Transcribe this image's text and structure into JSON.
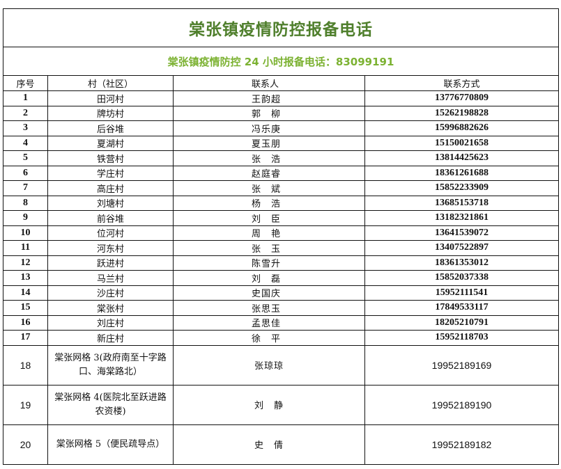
{
  "colors": {
    "title": "#4f7f2c",
    "subtitle": "#7cb232",
    "border": "#111111"
  },
  "title": "棠张镇疫情防控报备电话",
  "subtitle": "棠张镇疫情防控 24 小时报备电话：83099191",
  "headers": [
    "序号",
    "村（社区）",
    "联系人",
    "联系方式"
  ],
  "rows": [
    {
      "no": "1",
      "village": "田河村",
      "contact": "王韵超",
      "phone": "13776770809"
    },
    {
      "no": "2",
      "village": "牌坊村",
      "contact": "郭　柳",
      "phone": "15262198828"
    },
    {
      "no": "3",
      "village": "后谷堆",
      "contact": "冯乐庚",
      "phone": "15996882626"
    },
    {
      "no": "4",
      "village": "夏湖村",
      "contact": "夏玉朋",
      "phone": "15150021658"
    },
    {
      "no": "5",
      "village": "铁营村",
      "contact": "张　浩",
      "phone": "13814425623"
    },
    {
      "no": "6",
      "village": "学庄村",
      "contact": "赵庭睿",
      "phone": "18361261688"
    },
    {
      "no": "7",
      "village": "高庄村",
      "contact": "张　斌",
      "phone": "15852233909"
    },
    {
      "no": "8",
      "village": "刘塘村",
      "contact": "杨　浩",
      "phone": "13685153718"
    },
    {
      "no": "9",
      "village": "前谷堆",
      "contact": "刘　臣",
      "phone": "13182321861"
    },
    {
      "no": "10",
      "village": "位河村",
      "contact": "周　艳",
      "phone": "13641539072"
    },
    {
      "no": "11",
      "village": "河东村",
      "contact": "张　玉",
      "phone": "13407522897"
    },
    {
      "no": "12",
      "village": "跃进村",
      "contact": "陈雪升",
      "phone": "18361353012"
    },
    {
      "no": "13",
      "village": "马兰村",
      "contact": "刘　磊",
      "phone": "15852037338"
    },
    {
      "no": "14",
      "village": "沙庄村",
      "contact": "史国庆",
      "phone": "15952111541"
    },
    {
      "no": "15",
      "village": "棠张村",
      "contact": "张思玉",
      "phone": "17849533117"
    },
    {
      "no": "16",
      "village": "刘庄村",
      "contact": "孟思佳",
      "phone": "18205210791"
    },
    {
      "no": "17",
      "village": "新庄村",
      "contact": "徐　平",
      "phone": "15952118703"
    },
    {
      "no": "18",
      "village": "棠张网格 3(政府南至十字路口、海棠路北）",
      "contact": "张琼琼",
      "phone": "19952189169"
    },
    {
      "no": "19",
      "village": "棠张网格 4(医院北至跃进路农资楼)",
      "contact": "刘　静",
      "phone": "19952189190"
    },
    {
      "no": "20",
      "village": "棠张网格 5（便民疏导点）",
      "contact": "史　倩",
      "phone": "19952189182"
    }
  ]
}
